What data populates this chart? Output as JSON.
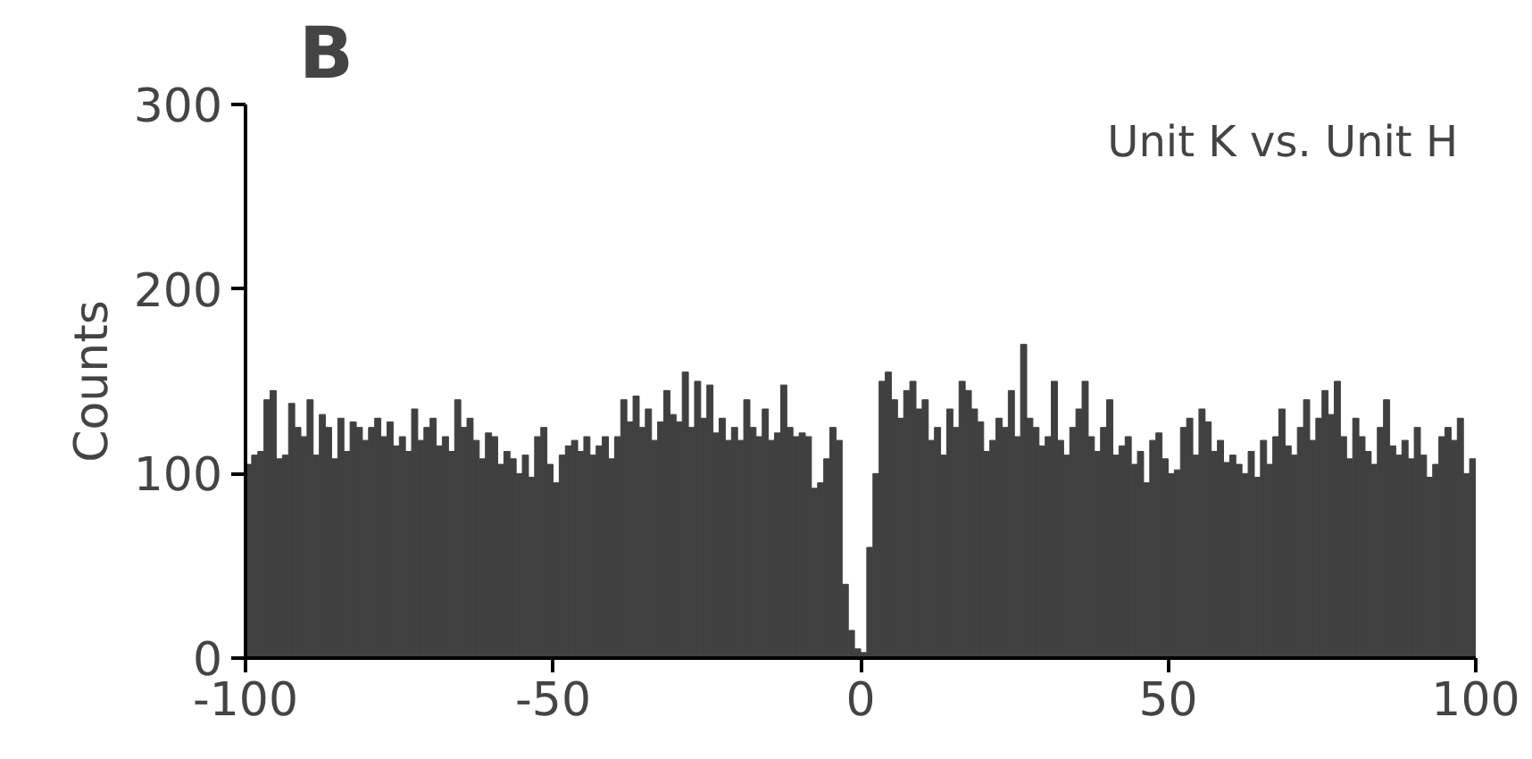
{
  "chart_data": {
    "type": "histogram",
    "title": "B",
    "ylabel": "Counts",
    "annotations": [
      "Unit K vs. Unit H"
    ],
    "bins": [
      -100,
      -99,
      -98,
      -97,
      -96,
      -95,
      -94,
      -93,
      -92,
      -91,
      -90,
      -89,
      -88,
      -87,
      -86,
      -85,
      -84,
      -83,
      -82,
      -81,
      -80,
      -79,
      -78,
      -77,
      -76,
      -75,
      -74,
      -73,
      -72,
      -71,
      -70,
      -69,
      -68,
      -67,
      -66,
      -65,
      -64,
      -63,
      -62,
      -61,
      -60,
      -59,
      -58,
      -57,
      -56,
      -55,
      -54,
      -53,
      -52,
      -51,
      -50,
      -49,
      -48,
      -47,
      -46,
      -45,
      -44,
      -43,
      -42,
      -41,
      -40,
      -39,
      -38,
      -37,
      -36,
      -35,
      -34,
      -33,
      -32,
      -31,
      -30,
      -29,
      -28,
      -27,
      -26,
      -25,
      -24,
      -23,
      -22,
      -21,
      -20,
      -19,
      -18,
      -17,
      -16,
      -15,
      -14,
      -13,
      -12,
      -11,
      -10,
      -9,
      -8,
      -7,
      -6,
      -5,
      -4,
      -3,
      -2,
      -1,
      0,
      1,
      2,
      3,
      4,
      5,
      6,
      7,
      8,
      9,
      10,
      11,
      12,
      13,
      14,
      15,
      16,
      17,
      18,
      19,
      20,
      21,
      22,
      23,
      24,
      25,
      26,
      27,
      28,
      29,
      30,
      31,
      32,
      33,
      34,
      35,
      36,
      37,
      38,
      39,
      40,
      41,
      42,
      43,
      44,
      45,
      46,
      47,
      48,
      49,
      50,
      51,
      52,
      53,
      54,
      55,
      56,
      57,
      58,
      59,
      60,
      61,
      62,
      63,
      64,
      65,
      66,
      67,
      68,
      69,
      70,
      71,
      72,
      73,
      74,
      75,
      76,
      77,
      78,
      79,
      80,
      81,
      82,
      83,
      84,
      85,
      86,
      87,
      88,
      89,
      90,
      91,
      92,
      93,
      94,
      95,
      96,
      97,
      98,
      99,
      100
    ],
    "values": [
      105,
      110,
      112,
      140,
      145,
      108,
      110,
      138,
      125,
      120,
      140,
      110,
      132,
      125,
      108,
      130,
      112,
      128,
      125,
      118,
      125,
      130,
      120,
      128,
      115,
      120,
      112,
      135,
      118,
      125,
      130,
      115,
      120,
      112,
      140,
      125,
      130,
      118,
      108,
      122,
      120,
      105,
      112,
      108,
      100,
      110,
      98,
      120,
      125,
      105,
      95,
      110,
      115,
      118,
      112,
      120,
      110,
      115,
      120,
      108,
      120,
      140,
      128,
      142,
      125,
      135,
      118,
      128,
      145,
      132,
      128,
      155,
      125,
      150,
      130,
      148,
      122,
      130,
      118,
      125,
      118,
      140,
      125,
      120,
      135,
      118,
      122,
      148,
      125,
      120,
      122,
      120,
      92,
      95,
      108,
      125,
      118,
      40,
      15,
      5,
      3,
      60,
      100,
      150,
      155,
      140,
      130,
      145,
      150,
      135,
      140,
      118,
      125,
      110,
      135,
      125,
      150,
      145,
      135,
      128,
      112,
      118,
      130,
      125,
      145,
      120,
      170,
      130,
      125,
      115,
      120,
      150,
      118,
      110,
      125,
      135,
      150,
      120,
      112,
      125,
      140,
      110,
      115,
      120,
      105,
      112,
      95,
      118,
      122,
      108,
      100,
      102,
      125,
      130,
      110,
      135,
      128,
      112,
      118,
      106,
      110,
      105,
      100,
      112,
      98,
      118,
      105,
      120,
      135,
      115,
      110,
      125,
      140,
      118,
      130,
      145,
      132,
      150,
      120,
      108,
      130,
      120,
      112,
      105,
      125,
      140,
      115,
      110,
      118,
      108,
      125,
      110,
      98,
      105,
      120,
      125,
      118,
      130,
      100,
      108
    ],
    "color": "#404040",
    "xlim": [
      -100,
      100
    ],
    "ylim": [
      0,
      300
    ],
    "xticks": [
      -100,
      -50,
      0,
      50,
      100
    ],
    "yticks": [
      0,
      100,
      200,
      300
    ],
    "grid": false
  }
}
